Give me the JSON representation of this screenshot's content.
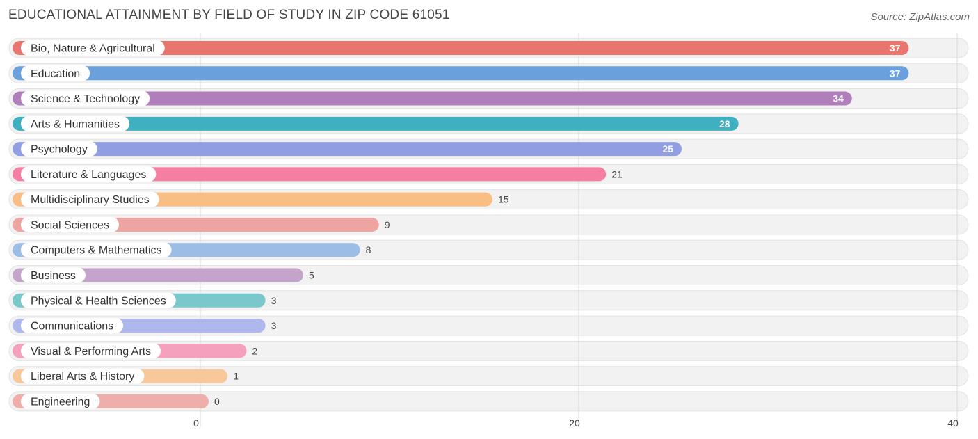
{
  "header": {
    "title": "EDUCATIONAL ATTAINMENT BY FIELD OF STUDY IN ZIP CODE 61051",
    "source": "Source: ZipAtlas.com"
  },
  "chart_data": {
    "type": "bar",
    "orientation": "horizontal",
    "title": "EDUCATIONAL ATTAINMENT BY FIELD OF STUDY IN ZIP CODE 61051",
    "xlabel": "",
    "ylabel": "",
    "xlim": [
      0,
      40
    ],
    "x_ticks": [
      0,
      20,
      40
    ],
    "grid": true,
    "categories": [
      "Bio, Nature & Agricultural",
      "Education",
      "Science & Technology",
      "Arts & Humanities",
      "Psychology",
      "Literature & Languages",
      "Multidisciplinary Studies",
      "Social Sciences",
      "Computers & Mathematics",
      "Business",
      "Physical & Health Sciences",
      "Communications",
      "Visual & Performing Arts",
      "Liberal Arts & History",
      "Engineering"
    ],
    "values": [
      37,
      37,
      34,
      28,
      25,
      21,
      15,
      9,
      8,
      5,
      3,
      3,
      2,
      1,
      0
    ],
    "colors": [
      "#e8766f",
      "#6aa0dc",
      "#b07fbb",
      "#3fb0bf",
      "#919fe2",
      "#f57ea3",
      "#f8be83",
      "#eea4a0",
      "#9cbde6",
      "#c5a4cc",
      "#79c8cc",
      "#afb8ec",
      "#f5a1bd",
      "#f8c79a",
      "#f0aeaa"
    ]
  }
}
